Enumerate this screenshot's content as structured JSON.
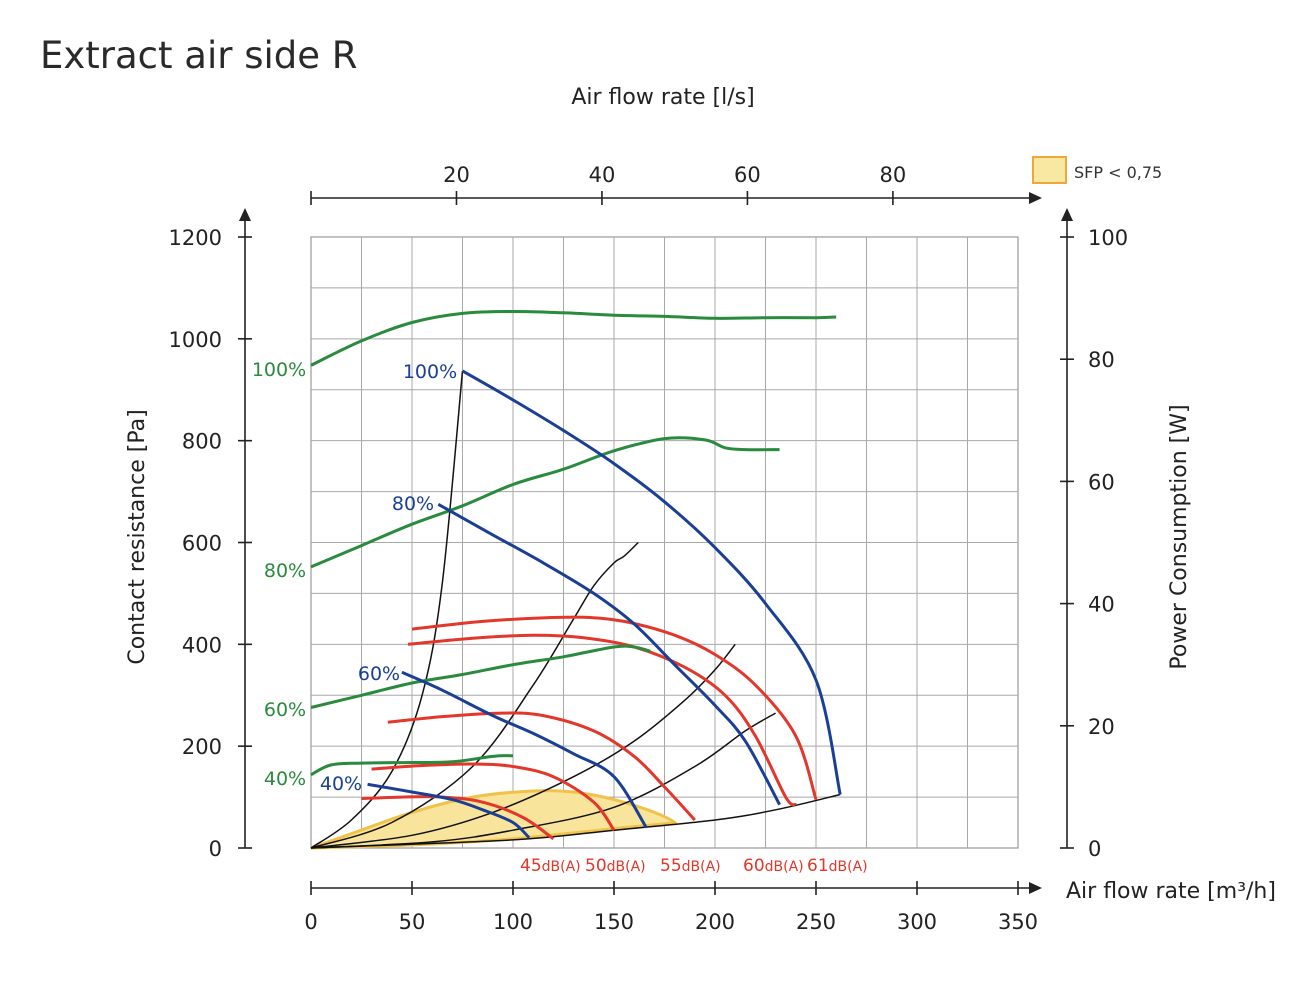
{
  "page": {
    "title": "Extract air side R"
  },
  "chart_data": {
    "type": "line",
    "title": "Extract air side R",
    "top_axis": {
      "label": "Air flow rate [l/s]",
      "ticks": [
        20,
        40,
        60,
        80
      ],
      "range": [
        0,
        97.2
      ]
    },
    "x_axis": {
      "label": "Air flow rate [m³/h]",
      "ticks": [
        0,
        50,
        100,
        150,
        200,
        250,
        300,
        350
      ],
      "range": [
        0,
        350
      ]
    },
    "y_axis": {
      "label": "Contact resistance [Pa]",
      "ticks": [
        0,
        200,
        400,
        600,
        800,
        1000,
        1200
      ],
      "range": [
        0,
        1200
      ]
    },
    "y2_axis": {
      "label": "Power Consumption [W]",
      "ticks": [
        0,
        20,
        40,
        60,
        80,
        100
      ],
      "range": [
        0,
        100
      ]
    },
    "grid": true,
    "legend": {
      "position": "top-right",
      "entries": [
        {
          "label": "SFP < 0,75",
          "color": "#f8e9a2",
          "border": "#f0a63a"
        }
      ]
    },
    "colors": {
      "fan_curve": "#1a3f95",
      "power_curve": "#2a8a3e",
      "sound_curve": "#e2372a",
      "system_curve": "#111111",
      "sfp_fill": "#f8e49a",
      "sfp_border": "#f0c24a"
    },
    "fan_curves": [
      {
        "label": "100%",
        "points": [
          [
            75,
            937
          ],
          [
            100,
            880
          ],
          [
            125,
            820
          ],
          [
            150,
            755
          ],
          [
            175,
            680
          ],
          [
            200,
            590
          ],
          [
            225,
            480
          ],
          [
            250,
            330
          ],
          [
            262,
            105
          ]
        ]
      },
      {
        "label": "80%",
        "points": [
          [
            63,
            675
          ],
          [
            90,
            615
          ],
          [
            115,
            560
          ],
          [
            140,
            500
          ],
          [
            160,
            440
          ],
          [
            180,
            360
          ],
          [
            200,
            280
          ],
          [
            215,
            210
          ],
          [
            232,
            85
          ]
        ]
      },
      {
        "label": "60%",
        "points": [
          [
            45,
            345
          ],
          [
            65,
            310
          ],
          [
            90,
            260
          ],
          [
            110,
            225
          ],
          [
            130,
            185
          ],
          [
            150,
            140
          ],
          [
            166,
            40
          ]
        ]
      },
      {
        "label": "40%",
        "points": [
          [
            28,
            125
          ],
          [
            50,
            110
          ],
          [
            70,
            95
          ],
          [
            85,
            75
          ],
          [
            100,
            50
          ],
          [
            108,
            20
          ]
        ]
      }
    ],
    "power_curves": [
      {
        "label": "100%",
        "axis": "y2",
        "points": [
          [
            0,
            79
          ],
          [
            25,
            83
          ],
          [
            50,
            86
          ],
          [
            75,
            87.5
          ],
          [
            100,
            87.8
          ],
          [
            125,
            87.6
          ],
          [
            150,
            87.2
          ],
          [
            175,
            87
          ],
          [
            200,
            86.7
          ],
          [
            225,
            86.8
          ],
          [
            250,
            86.8
          ],
          [
            260,
            86.9
          ]
        ]
      },
      {
        "label": "80%",
        "axis": "y2",
        "points": [
          [
            0,
            46
          ],
          [
            25,
            49.5
          ],
          [
            50,
            53
          ],
          [
            75,
            56
          ],
          [
            100,
            59.5
          ],
          [
            125,
            62
          ],
          [
            150,
            65
          ],
          [
            175,
            67
          ],
          [
            195,
            66.8
          ],
          [
            205,
            65.5
          ],
          [
            215,
            65.2
          ],
          [
            232,
            65.2
          ]
        ]
      },
      {
        "label": "60%",
        "axis": "y2",
        "points": [
          [
            0,
            23
          ],
          [
            25,
            25
          ],
          [
            50,
            27
          ],
          [
            75,
            28.4
          ],
          [
            100,
            30
          ],
          [
            125,
            31.3
          ],
          [
            150,
            32.9
          ],
          [
            160,
            32.9
          ],
          [
            168,
            32.2
          ]
        ]
      },
      {
        "label": "40%",
        "axis": "y2",
        "points": [
          [
            0,
            12
          ],
          [
            10,
            13.6
          ],
          [
            25,
            13.9
          ],
          [
            50,
            14
          ],
          [
            70,
            14.1
          ],
          [
            90,
            15
          ],
          [
            100,
            15.1
          ]
        ]
      }
    ],
    "sound_curves": [
      {
        "label": "45",
        "unit": "dB(A)",
        "points": [
          [
            25,
            97
          ],
          [
            45,
            100
          ],
          [
            65,
            100
          ],
          [
            85,
            90
          ],
          [
            105,
            60
          ],
          [
            120,
            18
          ]
        ]
      },
      {
        "label": "50",
        "unit": "dB(A)",
        "points": [
          [
            30,
            155
          ],
          [
            55,
            162
          ],
          [
            80,
            165
          ],
          [
            100,
            160
          ],
          [
            120,
            140
          ],
          [
            140,
            90
          ],
          [
            150,
            35
          ]
        ]
      },
      {
        "label": "55",
        "unit": "dB(A)",
        "points": [
          [
            38,
            247
          ],
          [
            65,
            258
          ],
          [
            95,
            265
          ],
          [
            115,
            260
          ],
          [
            140,
            230
          ],
          [
            160,
            180
          ],
          [
            175,
            120
          ],
          [
            190,
            55
          ]
        ]
      },
      {
        "label": "60",
        "unit": "dB(A)",
        "points": [
          [
            48,
            400
          ],
          [
            80,
            412
          ],
          [
            110,
            418
          ],
          [
            135,
            413
          ],
          [
            160,
            395
          ],
          [
            185,
            355
          ],
          [
            205,
            300
          ],
          [
            220,
            220
          ],
          [
            235,
            100
          ],
          [
            240,
            85
          ]
        ]
      },
      {
        "label": "61",
        "unit": "dB(A)",
        "points": [
          [
            50,
            430
          ],
          [
            85,
            445
          ],
          [
            115,
            452
          ],
          [
            135,
            453
          ],
          [
            155,
            445
          ],
          [
            180,
            418
          ],
          [
            200,
            380
          ],
          [
            220,
            320
          ],
          [
            240,
            220
          ],
          [
            250,
            95
          ]
        ]
      }
    ],
    "system_curves": [
      {
        "points": [
          [
            0,
            0
          ],
          [
            20,
            55
          ],
          [
            40,
            150
          ],
          [
            55,
            300
          ],
          [
            65,
            520
          ],
          [
            75,
            937
          ]
        ]
      },
      {
        "points": [
          [
            0,
            0
          ],
          [
            40,
            50
          ],
          [
            80,
            160
          ],
          [
            110,
            320
          ],
          [
            130,
            450
          ],
          [
            140,
            515
          ],
          [
            150,
            560
          ],
          [
            155,
            573
          ],
          [
            162,
            600
          ]
        ]
      },
      {
        "points": [
          [
            0,
            0
          ],
          [
            50,
            25
          ],
          [
            90,
            70
          ],
          [
            130,
            140
          ],
          [
            160,
            210
          ],
          [
            185,
            290
          ],
          [
            200,
            350
          ],
          [
            210,
            400
          ]
        ]
      },
      {
        "points": [
          [
            0,
            0
          ],
          [
            60,
            12
          ],
          [
            100,
            35
          ],
          [
            150,
            80
          ],
          [
            190,
            160
          ],
          [
            215,
            230
          ],
          [
            230,
            265
          ]
        ]
      },
      {
        "points": [
          [
            0,
            0
          ],
          [
            100,
            16
          ],
          [
            150,
            35
          ],
          [
            200,
            55
          ],
          [
            230,
            75
          ],
          [
            262,
            105
          ]
        ]
      }
    ],
    "sfp_region": {
      "label": "SFP < 0,75",
      "points": [
        [
          0,
          0
        ],
        [
          20,
          28
        ],
        [
          50,
          70
        ],
        [
          80,
          100
        ],
        [
          110,
          112
        ],
        [
          130,
          110
        ],
        [
          150,
          95
        ],
        [
          170,
          70
        ],
        [
          180,
          50
        ],
        [
          176,
          48
        ],
        [
          150,
          38
        ],
        [
          100,
          18
        ],
        [
          50,
          6
        ],
        [
          0,
          0
        ]
      ]
    },
    "series_labels": {
      "fan": [
        {
          "text": "100%",
          "at": [
            75,
            937
          ]
        },
        {
          "text": "80%",
          "at": [
            63,
            675
          ]
        },
        {
          "text": "60%",
          "at": [
            45,
            345
          ]
        },
        {
          "text": "40%",
          "at": [
            28,
            125
          ]
        }
      ],
      "power": [
        {
          "text": "100%"
        },
        {
          "text": "80%"
        },
        {
          "text": "60%"
        },
        {
          "text": "40%"
        }
      ],
      "sound": [
        {
          "value": "45",
          "unit": "dB(A)"
        },
        {
          "value": "50",
          "unit": "dB(A)"
        },
        {
          "value": "55",
          "unit": "dB(A)"
        },
        {
          "value": "60",
          "unit": "dB(A)"
        },
        {
          "value": "61",
          "unit": "dB(A)"
        }
      ]
    }
  }
}
